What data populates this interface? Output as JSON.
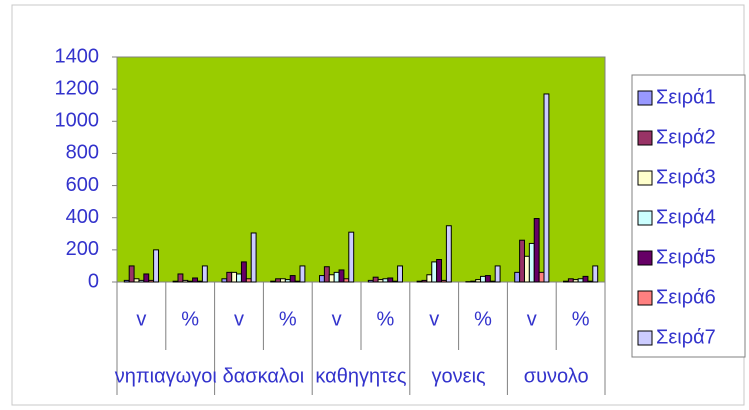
{
  "chart_data": {
    "type": "bar",
    "categories": [
      "v",
      "%",
      "v",
      "%",
      "v",
      "%",
      "v",
      "%",
      "v",
      "%"
    ],
    "groups": [
      "νηπιαγωγοι",
      "δασκαλοι",
      "καθηγητες",
      "γονεις",
      "συνολο"
    ],
    "series": [
      {
        "name": "Σειρά1",
        "color": "#9999ff",
        "values": [
          10,
          5,
          20,
          5,
          40,
          10,
          5,
          2,
          60,
          5
        ]
      },
      {
        "name": "Σειρά2",
        "color": "#993366",
        "values": [
          100,
          50,
          60,
          20,
          95,
          30,
          10,
          5,
          260,
          20
        ]
      },
      {
        "name": "Σειρά3",
        "color": "#ffffcc",
        "values": [
          20,
          10,
          60,
          20,
          45,
          15,
          45,
          15,
          160,
          15
        ]
      },
      {
        "name": "Σειρά4",
        "color": "#ccffff",
        "values": [
          10,
          5,
          50,
          15,
          60,
          20,
          125,
          35,
          240,
          20
        ]
      },
      {
        "name": "Σειρά5",
        "color": "#660066",
        "values": [
          50,
          25,
          125,
          40,
          75,
          25,
          140,
          40,
          395,
          35
        ]
      },
      {
        "name": "Σειρά6",
        "color": "#ff8080",
        "values": [
          10,
          5,
          20,
          5,
          20,
          5,
          10,
          5,
          60,
          5
        ]
      },
      {
        "name": "Σειρά7",
        "color": "#ccccff",
        "values": [
          200,
          100,
          305,
          100,
          310,
          100,
          350,
          100,
          1170,
          100
        ]
      }
    ],
    "ylim": [
      0,
      1400
    ],
    "yticks": [
      0,
      200,
      400,
      600,
      800,
      1000,
      1200,
      1400
    ],
    "plot_background": "#99cc00",
    "legend": "right"
  }
}
